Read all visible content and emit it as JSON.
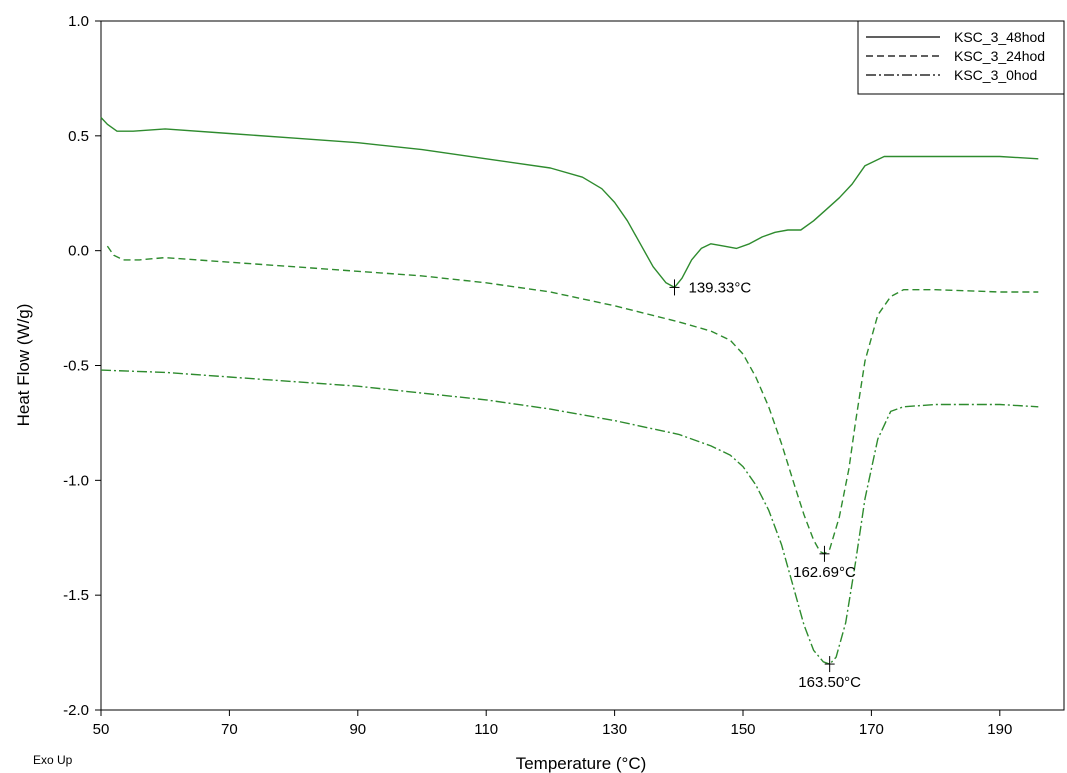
{
  "chart_data": {
    "type": "line",
    "xlabel": "Temperature (°C)",
    "ylabel": "Heat Flow (W/g)",
    "xlim": [
      50,
      200
    ],
    "ylim": [
      -2.0,
      1.0
    ],
    "xticks": [
      50,
      70,
      90,
      110,
      130,
      150,
      170,
      190
    ],
    "xtick_labels": [
      "50",
      "70",
      "90",
      "110",
      "130",
      "150",
      "170",
      "190"
    ],
    "yticks": [
      1.0,
      0.5,
      0.0,
      -0.5,
      -1.0,
      -1.5,
      -2.0
    ],
    "ytick_labels": [
      "1.0",
      "0.5",
      "0.0",
      "-0.5",
      "-1.0",
      "-1.5",
      "-2.0"
    ],
    "grid": false,
    "legend_position": "top-right",
    "corner_note": "Exo Up",
    "line_color": "#2e8b2e",
    "series": [
      {
        "name": "KSC_3_48hod",
        "style": "solid",
        "x": [
          50,
          51,
          52.5,
          55,
          60,
          70,
          80,
          90,
          100,
          110,
          120,
          125,
          128,
          130,
          132,
          134,
          136,
          138,
          139.33,
          140.5,
          142,
          143.5,
          145,
          147,
          149,
          151,
          153,
          155,
          157,
          159,
          161,
          163,
          165,
          167,
          169,
          172,
          180,
          190,
          196
        ],
        "y": [
          0.58,
          0.55,
          0.52,
          0.52,
          0.53,
          0.51,
          0.49,
          0.47,
          0.44,
          0.4,
          0.36,
          0.32,
          0.27,
          0.21,
          0.13,
          0.03,
          -0.07,
          -0.14,
          -0.16,
          -0.12,
          -0.04,
          0.01,
          0.03,
          0.02,
          0.01,
          0.03,
          0.06,
          0.08,
          0.09,
          0.09,
          0.13,
          0.18,
          0.23,
          0.29,
          0.37,
          0.41,
          0.41,
          0.41,
          0.4
        ]
      },
      {
        "name": "KSC_3_24hod",
        "style": "dashed",
        "x": [
          51,
          52,
          53.5,
          56,
          60,
          70,
          80,
          90,
          100,
          110,
          120,
          130,
          140,
          145,
          148,
          150,
          152,
          154,
          156,
          158,
          159.5,
          161,
          162,
          162.69,
          163.5,
          165,
          166.5,
          167.5,
          169,
          171,
          173,
          175,
          180,
          190,
          196
        ],
        "y": [
          0.02,
          -0.02,
          -0.04,
          -0.04,
          -0.03,
          -0.05,
          -0.07,
          -0.09,
          -0.11,
          -0.14,
          -0.18,
          -0.24,
          -0.31,
          -0.35,
          -0.39,
          -0.45,
          -0.55,
          -0.68,
          -0.84,
          -1.02,
          -1.15,
          -1.26,
          -1.31,
          -1.32,
          -1.3,
          -1.16,
          -0.95,
          -0.75,
          -0.48,
          -0.28,
          -0.2,
          -0.17,
          -0.17,
          -0.18,
          -0.18
        ]
      },
      {
        "name": "KSC_3_0hod",
        "style": "dashdot",
        "x": [
          50,
          60,
          70,
          80,
          90,
          100,
          110,
          120,
          130,
          140,
          145,
          148,
          150,
          152,
          154,
          156,
          158,
          159.5,
          161,
          162.5,
          163.5,
          164.5,
          166,
          167.5,
          169,
          171,
          173,
          175,
          180,
          190,
          196
        ],
        "y": [
          -0.52,
          -0.53,
          -0.55,
          -0.57,
          -0.59,
          -0.62,
          -0.65,
          -0.69,
          -0.74,
          -0.8,
          -0.85,
          -0.89,
          -0.94,
          -1.02,
          -1.13,
          -1.28,
          -1.48,
          -1.63,
          -1.74,
          -1.79,
          -1.8,
          -1.77,
          -1.62,
          -1.36,
          -1.08,
          -0.82,
          -0.7,
          -0.68,
          -0.67,
          -0.67,
          -0.68
        ]
      }
    ],
    "annotations": [
      {
        "label": "139.33°C",
        "x": 139.33,
        "y": -0.16,
        "placement": "right"
      },
      {
        "label": "162.69°C",
        "x": 162.69,
        "y": -1.32,
        "placement": "below"
      },
      {
        "label": "163.50°C",
        "x": 163.5,
        "y": -1.8,
        "placement": "below"
      }
    ]
  }
}
